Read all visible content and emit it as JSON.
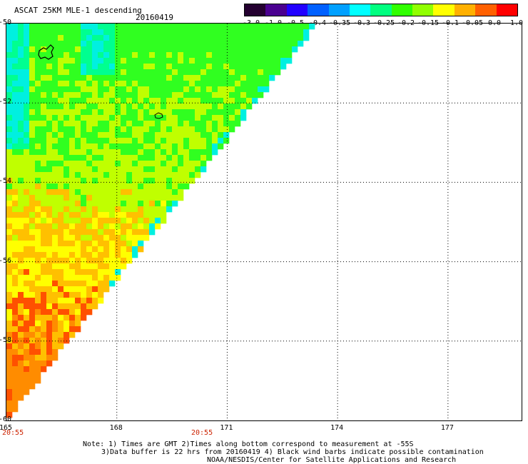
{
  "header": {
    "title": "ASCAT 25KM MLE-1 descending",
    "date": "20160419"
  },
  "colorbar": {
    "labels": [
      "-3.0",
      "-1.0",
      "-0.5",
      "-0.4",
      "-0.35",
      "-0.3",
      "-0.25",
      "-0.2",
      "-0.15",
      "-0.1",
      "-0.05",
      "0.0",
      "1.0"
    ],
    "colors": [
      "#240030",
      "#4a0090",
      "#2200ff",
      "#0060ff",
      "#00a0ff",
      "#00ffff",
      "#00ff80",
      "#30ff00",
      "#90ff00",
      "#ffff00",
      "#ffb000",
      "#ff6000",
      "#ff0000"
    ]
  },
  "map": {
    "lon_ticks": [
      "165",
      "168",
      "171",
      "174",
      "177"
    ],
    "lat_ticks": [
      "-50",
      "-52",
      "-54",
      "-56",
      "-58",
      "-60"
    ],
    "times": [
      "20:55",
      "20:55"
    ],
    "palette": {
      "cyan": "#00f0e0",
      "green_cyan": "#00ff90",
      "green": "#30ff20",
      "yellow_green": "#c0ff00",
      "yellow": "#ffff00",
      "orange_yellow": "#ffc000",
      "orange": "#ff8c00",
      "red_orange": "#ff5000"
    }
  },
  "notes": {
    "line1": "Note: 1) Times are GMT 2)Times along bottom correspond to measurement at -55S",
    "line2": "3)Data buffer is 22 hrs from 20160419 4) Black wind barbs indicate possible contamination",
    "line3": "NOAA/NESDIS/Center for Satellite Applications and Research"
  }
}
